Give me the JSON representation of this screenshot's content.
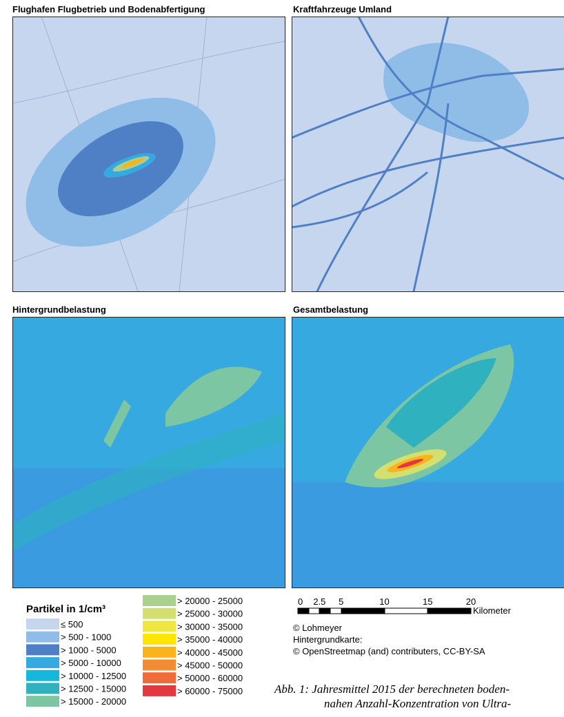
{
  "panels": [
    {
      "title": "Flughafen Flugbetrieb und Bodenabfertigung"
    },
    {
      "title": "Kraftfahrzeuge Umland"
    },
    {
      "title": "Hintergrundbelastung"
    },
    {
      "title": "Gesamtbelastung"
    }
  ],
  "legend": {
    "title": "Partikel in 1/cm³",
    "items": [
      {
        "label": "≤ 500",
        "color": "#c6d6ee"
      },
      {
        "label": "> 500 - 1000",
        "color": "#8fbde8"
      },
      {
        "label": "> 1000 - 5000",
        "color": "#4f7fc4"
      },
      {
        "label": "> 5000 - 10000",
        "color": "#36a9e1"
      },
      {
        "label": "> 10000 - 12500",
        "color": "#16b7dc"
      },
      {
        "label": "> 12500 - 15000",
        "color": "#2fb1bf"
      },
      {
        "label": "> 15000 - 20000",
        "color": "#7cc6a3"
      },
      {
        "label": "> 20000 - 25000",
        "color": "#a9d08e"
      },
      {
        "label": "> 25000 - 30000",
        "color": "#d3df6f"
      },
      {
        "label": "> 30000 - 35000",
        "color": "#f0e643"
      },
      {
        "label": "> 35000 - 40000",
        "color": "#ffe500"
      },
      {
        "label": "> 40000 - 45000",
        "color": "#f9b31c"
      },
      {
        "label": "> 45000 - 50000",
        "color": "#f18c34"
      },
      {
        "label": "> 50000 - 60000",
        "color": "#ee6b3a"
      },
      {
        "label": "> 60000 - 75000",
        "color": "#e3383f"
      }
    ]
  },
  "scale": {
    "ticks": [
      "0",
      "2.5",
      "5",
      "10",
      "15",
      "20"
    ],
    "unit": "Kilometer"
  },
  "credits": [
    "© Lohmeyer",
    "Hintergrundkarte:",
    "© OpenStreetmap (and) contributers, CC-BY-SA"
  ],
  "caption": [
    "Abb. 1: Jahresmittel 2015 der berechneten boden-",
    "nahen Anzahl-Konzentration von Ultra-"
  ]
}
